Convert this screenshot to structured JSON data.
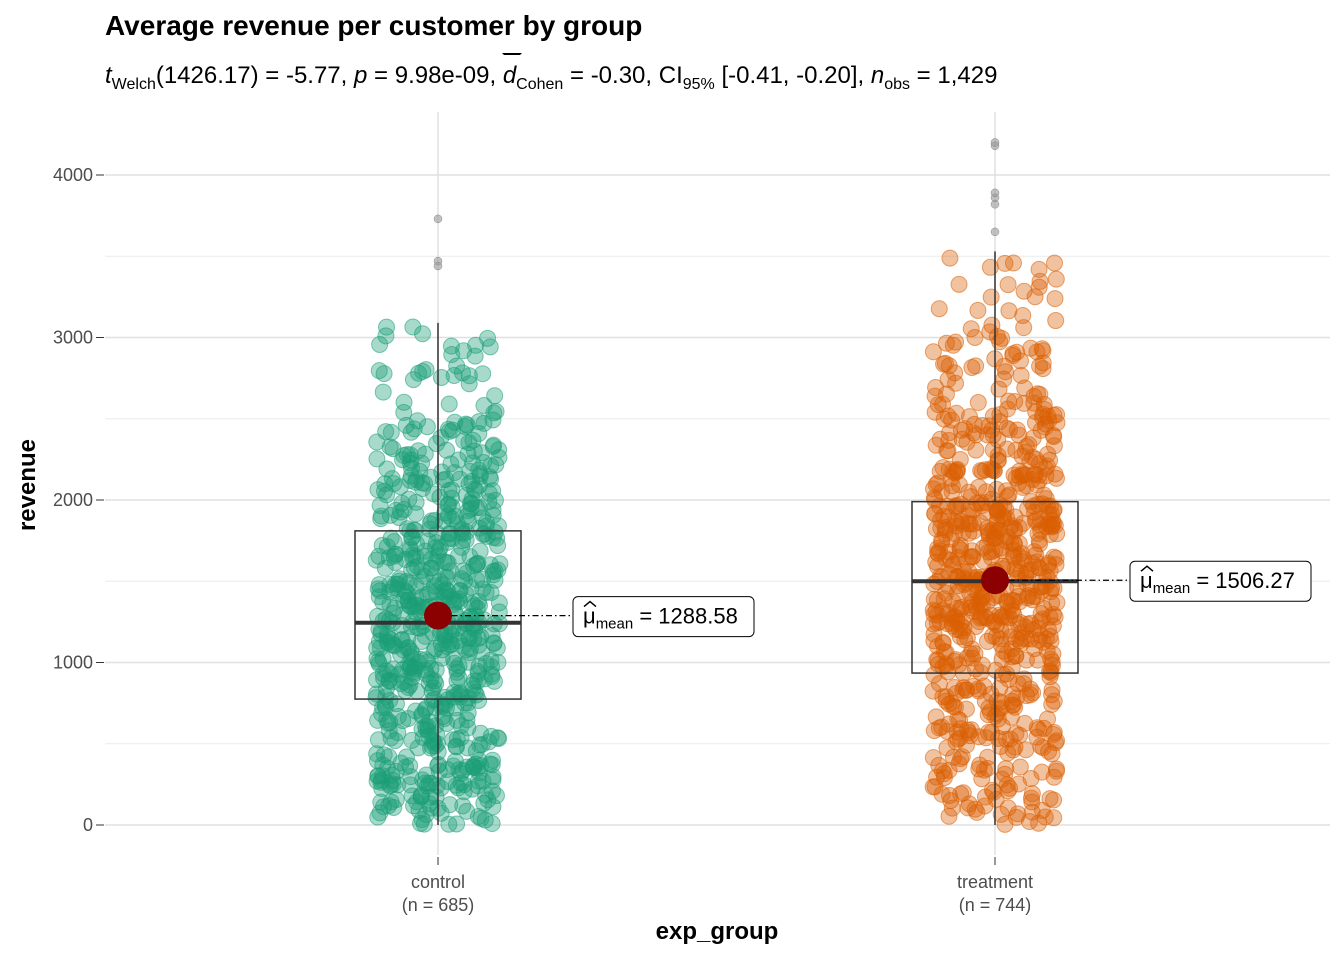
{
  "chart_data": {
    "type": "scatter",
    "subtype": "box-violin-jitter",
    "title": "Average revenue per customer by group",
    "subtitle": {
      "t_label": "t",
      "t_sub": "Welch",
      "t_df": "(1426.17)",
      "t_value": "-5.77",
      "p_label": "p",
      "p_value": "9.98e-09",
      "d_label": "d",
      "d_sub": "Cohen",
      "d_value": "-0.30",
      "ci_label": "CI",
      "ci_sub": "95%",
      "ci_value": "[-0.41, -0.20]",
      "n_label": "n",
      "n_sub": "obs",
      "n_value": "1,429"
    },
    "xlabel": "exp_group",
    "ylabel": "revenue",
    "ylim": [
      -50,
      4400
    ],
    "y_ticks": [
      0,
      1000,
      2000,
      3000,
      4000
    ],
    "y_tick_labels": [
      "0",
      "1000",
      "2000",
      "3000",
      "4000"
    ],
    "grid": true,
    "groups": [
      {
        "name": "control",
        "n_label": "(n = 685)",
        "n": 685,
        "color": "#1b9e77",
        "mean": 1288.58,
        "mean_label": "1288.58",
        "median": 1245,
        "q1": 775,
        "q3": 1810,
        "whisker_low": 0,
        "whisker_high": 3090,
        "outliers": [
          3470,
          3440,
          3730
        ]
      },
      {
        "name": "treatment",
        "n_label": "(n = 744)",
        "n": 744,
        "color": "#d95f02",
        "mean": 1506.27,
        "mean_label": "1506.27",
        "median": 1500,
        "q1": 935,
        "q3": 1990,
        "whisker_low": 0,
        "whisker_high": 3530,
        "outliers": [
          3650,
          3820,
          3860,
          3890,
          4180,
          4200
        ]
      }
    ],
    "mean_point_color": "#8b0000",
    "mean_label_prefix": "μ",
    "mean_label_sub": "mean"
  }
}
